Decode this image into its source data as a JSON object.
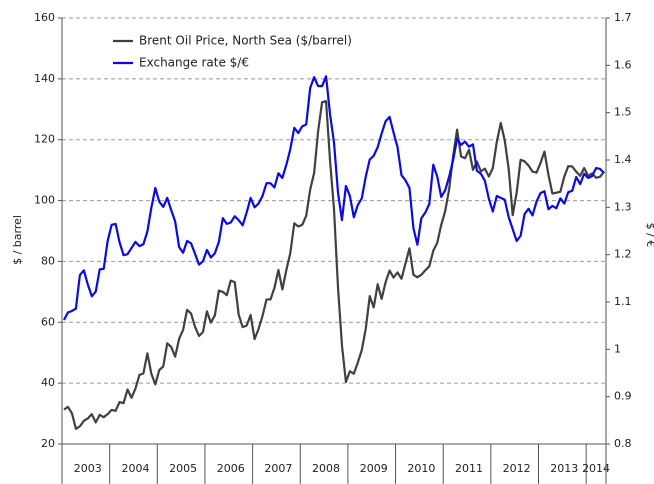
{
  "chart_data": {
    "type": "line",
    "y_label": "$ / barrel",
    "y2_label": "$ / €",
    "categories": [
      null,
      null,
      null,
      null,
      null,
      null,
      "2003",
      null,
      null,
      null,
      null,
      null,
      null,
      null,
      null,
      null,
      null,
      null,
      "2004",
      null,
      null,
      null,
      null,
      null,
      null,
      null,
      null,
      null,
      null,
      null,
      "2005",
      null,
      null,
      null,
      null,
      null,
      null,
      null,
      null,
      null,
      null,
      null,
      "2006",
      null,
      null,
      null,
      null,
      null,
      null,
      null,
      null,
      null,
      null,
      null,
      "2007",
      null,
      null,
      null,
      null,
      null,
      null,
      null,
      null,
      null,
      null,
      null,
      "2008",
      null,
      null,
      null,
      null,
      null,
      null,
      null,
      null,
      null,
      null,
      null,
      "2009",
      null,
      null,
      null,
      null,
      null,
      null,
      null,
      null,
      null,
      null,
      null,
      "2010",
      null,
      null,
      null,
      null,
      null,
      null,
      null,
      null,
      null,
      null,
      null,
      "2011",
      null,
      null,
      null,
      null,
      null,
      null,
      null,
      null,
      null,
      null,
      null,
      "2012",
      null,
      null,
      null,
      null,
      null,
      null,
      null,
      null,
      null,
      null,
      null,
      "2013",
      null,
      null,
      null,
      null,
      null,
      null,
      null,
      "2014",
      null,
      null
    ],
    "series": [
      {
        "name": "Brent Oil Price, North Sea ($/barrel)",
        "color": "#404040",
        "values": [
          31.3,
          32.2,
          30.1,
          25.0,
          25.8,
          27.6,
          28.4,
          29.8,
          27.1,
          29.6,
          28.8,
          29.8,
          31.2,
          30.9,
          33.8,
          33.4,
          37.9,
          35.2,
          38.2,
          42.7,
          43.2,
          49.8,
          43.1,
          39.6,
          44.3,
          45.5,
          53.1,
          51.9,
          48.7,
          54.6,
          57.5,
          64.1,
          62.9,
          58.5,
          55.5,
          56.8,
          63.6,
          59.9,
          62.3,
          70.4,
          70.0,
          68.9,
          73.7,
          73.2,
          62.5,
          58.4,
          58.9,
          62.4,
          54.5,
          57.8,
          62.1,
          67.5,
          67.5,
          71.3,
          77.2,
          70.8,
          77.2,
          82.8,
          92.5,
          91.5,
          92.0,
          95.0,
          103.6,
          109.1,
          122.8,
          132.3,
          132.7,
          113.2,
          97.2,
          71.6,
          52.5,
          40.4,
          43.9,
          43.1,
          46.8,
          50.9,
          57.9,
          68.6,
          64.9,
          72.5,
          67.7,
          73.2,
          77.0,
          74.7,
          76.4,
          74.3,
          79.3,
          84.3,
          75.6,
          74.8,
          75.6,
          77.1,
          78.4,
          83.5,
          86.1,
          92.0,
          96.5,
          103.7,
          114.6,
          123.3,
          114.5,
          113.9,
          116.7,
          110.1,
          112.8,
          109.6,
          110.5,
          107.9,
          110.7,
          119.3,
          125.5,
          119.8,
          110.3,
          95.2,
          102.6,
          113.4,
          112.9,
          111.5,
          109.5,
          109.2,
          112.3,
          116.1,
          108.5,
          102.3,
          102.6,
          102.9,
          107.9,
          111.3,
          111.2,
          109.5,
          108.1,
          110.7,
          108.1,
          108.9,
          107.5,
          107.8,
          109.5
        ]
      },
      {
        "name": "Exchange rate $/€",
        "color": "#0a0ae6",
        "axis": "y2",
        "values": [
          1.062,
          1.078,
          1.081,
          1.086,
          1.157,
          1.167,
          1.137,
          1.112,
          1.122,
          1.169,
          1.17,
          1.229,
          1.263,
          1.265,
          1.226,
          1.199,
          1.201,
          1.214,
          1.227,
          1.218,
          1.222,
          1.249,
          1.299,
          1.341,
          1.312,
          1.301,
          1.32,
          1.294,
          1.27,
          1.216,
          1.204,
          1.229,
          1.224,
          1.202,
          1.179,
          1.186,
          1.21,
          1.194,
          1.203,
          1.227,
          1.277,
          1.265,
          1.268,
          1.281,
          1.273,
          1.262,
          1.289,
          1.32,
          1.3,
          1.308,
          1.324,
          1.351,
          1.351,
          1.342,
          1.372,
          1.362,
          1.39,
          1.423,
          1.468,
          1.457,
          1.471,
          1.475,
          1.552,
          1.575,
          1.556,
          1.556,
          1.577,
          1.497,
          1.437,
          1.332,
          1.273,
          1.345,
          1.324,
          1.279,
          1.305,
          1.319,
          1.365,
          1.401,
          1.409,
          1.427,
          1.456,
          1.482,
          1.491,
          1.458,
          1.427,
          1.368,
          1.357,
          1.341,
          1.256,
          1.221,
          1.277,
          1.289,
          1.307,
          1.39,
          1.365,
          1.322,
          1.336,
          1.365,
          1.4,
          1.445,
          1.432,
          1.439,
          1.428,
          1.433,
          1.377,
          1.371,
          1.356,
          1.318,
          1.291,
          1.324,
          1.32,
          1.316,
          1.279,
          1.254,
          1.229,
          1.24,
          1.286,
          1.297,
          1.283,
          1.312,
          1.33,
          1.334,
          1.296,
          1.303,
          1.298,
          1.319,
          1.308,
          1.332,
          1.335,
          1.364,
          1.349,
          1.371,
          1.362,
          1.366,
          1.383,
          1.381,
          1.373
        ]
      }
    ],
    "ylim": [
      20,
      160
    ],
    "yticks": [
      20,
      40,
      60,
      80,
      100,
      120,
      140,
      160
    ],
    "y2lim": [
      0.8,
      1.7
    ],
    "y2ticks": [
      0.8,
      0.9,
      1,
      1.1,
      1.2,
      1.3,
      1.4,
      1.5,
      1.6,
      1.7
    ],
    "grid": true,
    "legend": "upper left"
  }
}
